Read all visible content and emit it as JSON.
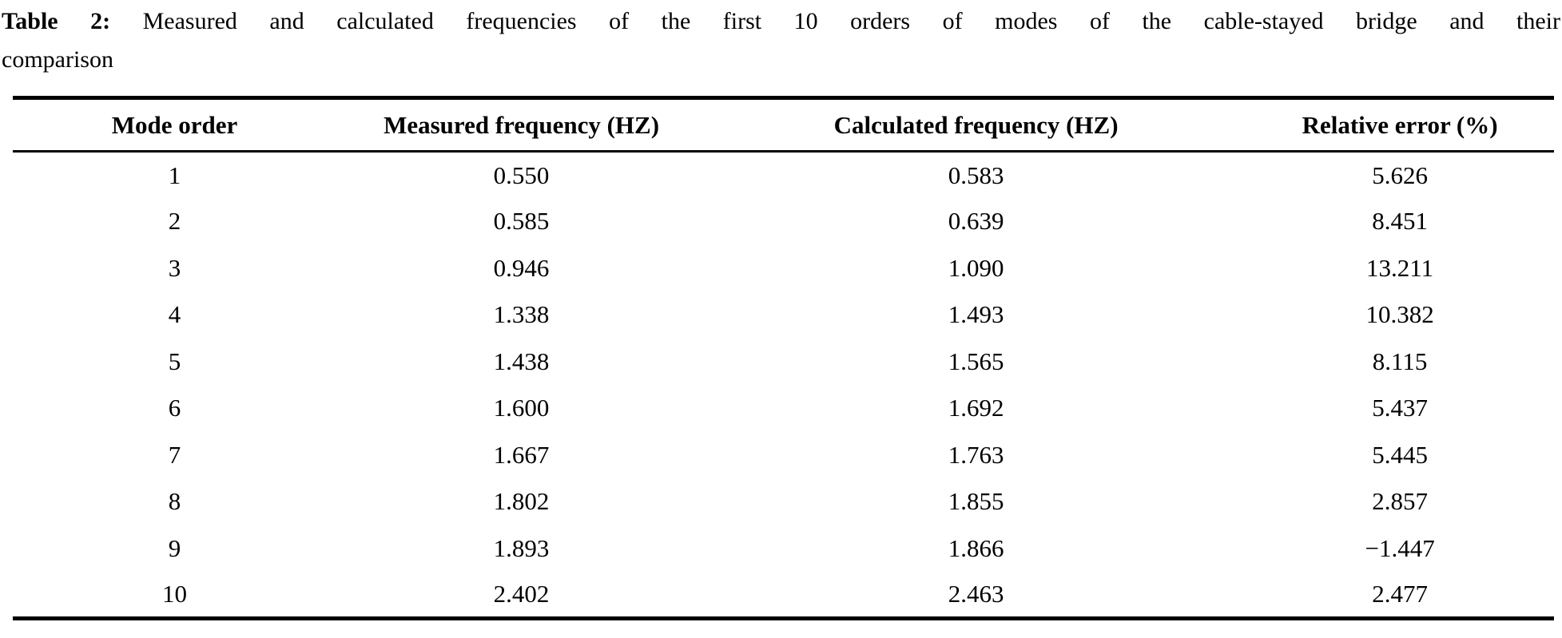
{
  "caption": {
    "label": "Table 2:",
    "line1": "Measured and calculated frequencies of the first 10 orders of modes of the cable-stayed bridge and their",
    "line2": "comparison"
  },
  "table": {
    "columns": [
      "Mode order",
      "Measured frequency (HZ)",
      "Calculated frequency (HZ)",
      "Relative error (%)"
    ],
    "rows": [
      [
        "1",
        "0.550",
        "0.583",
        "5.626"
      ],
      [
        "2",
        "0.585",
        "0.639",
        "8.451"
      ],
      [
        "3",
        "0.946",
        "1.090",
        "13.211"
      ],
      [
        "4",
        "1.338",
        "1.493",
        "10.382"
      ],
      [
        "5",
        "1.438",
        "1.565",
        "8.115"
      ],
      [
        "6",
        "1.600",
        "1.692",
        "5.437"
      ],
      [
        "7",
        "1.667",
        "1.763",
        "5.445"
      ],
      [
        "8",
        "1.802",
        "1.855",
        "2.857"
      ],
      [
        "9",
        "1.893",
        "1.866",
        "−1.447"
      ],
      [
        "10",
        "2.402",
        "2.463",
        "2.477"
      ]
    ]
  }
}
